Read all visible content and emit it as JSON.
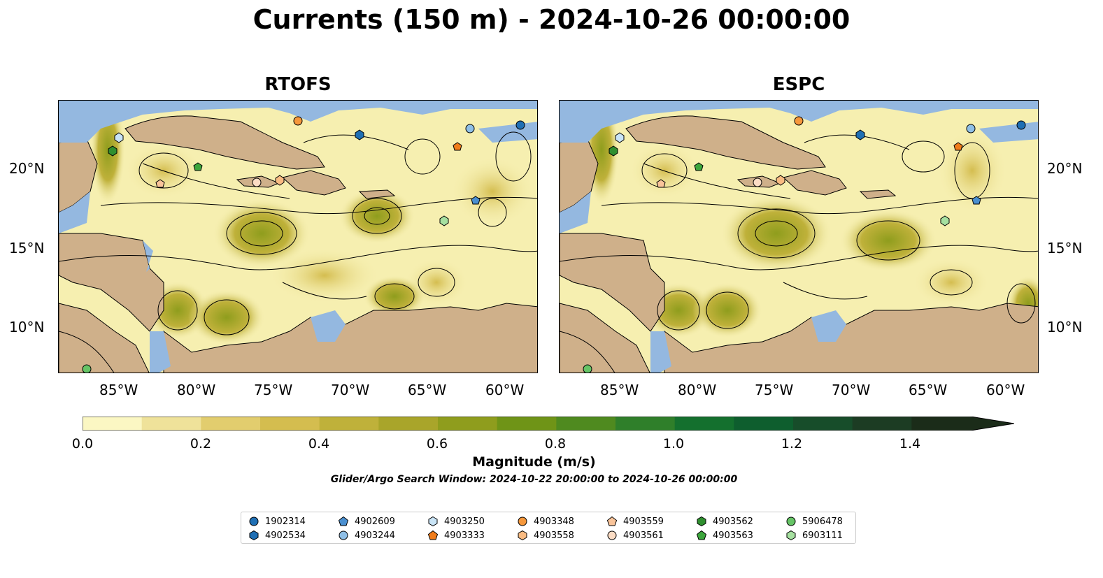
{
  "title": "Currents (150 m) - 2024-10-26 00:00:00",
  "panels": [
    {
      "name": "RTOFS"
    },
    {
      "name": "ESPC"
    }
  ],
  "axes": {
    "lat_ticks": [
      "20°N",
      "15°N",
      "10°N"
    ],
    "lon_ticks": [
      "85°W",
      "80°W",
      "75°W",
      "70°W",
      "65°W",
      "60°W"
    ]
  },
  "colorbar": {
    "label": "Magnitude (m/s)",
    "ticks": [
      "0.0",
      "0.2",
      "0.4",
      "0.6",
      "0.8",
      "1.0",
      "1.2",
      "1.4"
    ],
    "range": [
      0.0,
      1.5
    ],
    "extend": "max",
    "colors": [
      "#fbf7c3",
      "#efe29a",
      "#e2cd6e",
      "#d4bd4f",
      "#bfb13a",
      "#a9a52a",
      "#8f9d1d",
      "#6f9417",
      "#4f8a1f",
      "#2f7f2a",
      "#14702e",
      "#0e5e2e",
      "#174d2a",
      "#1c3c23",
      "#1b2c19"
    ]
  },
  "search_window": "Glider/Argo Search Window: 2024-10-22 20:00:00 to 2024-10-26 00:00:00",
  "map_colors": {
    "ocean": "#f6efb0",
    "land": "#cfb08a",
    "water": "#94b8e0"
  },
  "legend": [
    {
      "id": "1902314",
      "marker": "circle",
      "color": "#1f6fb4"
    },
    {
      "id": "4902534",
      "marker": "hexagon",
      "color": "#1f6fb4"
    },
    {
      "id": "4902609",
      "marker": "pentagon",
      "color": "#4a8fd0"
    },
    {
      "id": "4903244",
      "marker": "circle",
      "color": "#8fbfe6"
    },
    {
      "id": "4903250",
      "marker": "hexagon",
      "color": "#c9e4f6"
    },
    {
      "id": "4903333",
      "marker": "pentagon",
      "color": "#f07c1a"
    },
    {
      "id": "4903348",
      "marker": "circle",
      "color": "#f6983c"
    },
    {
      "id": "4903558",
      "marker": "hexagon",
      "color": "#f9bb82"
    },
    {
      "id": "4903559",
      "marker": "pentagon",
      "color": "#f9c49a"
    },
    {
      "id": "4903561",
      "marker": "circle",
      "color": "#fbdcc4"
    },
    {
      "id": "4903562",
      "marker": "hexagon",
      "color": "#2f8f2f"
    },
    {
      "id": "4903563",
      "marker": "pentagon",
      "color": "#3ca63c"
    },
    {
      "id": "5906478",
      "marker": "circle",
      "color": "#66c466"
    },
    {
      "id": "6903111",
      "marker": "hexagon",
      "color": "#a6e0a0"
    }
  ]
}
